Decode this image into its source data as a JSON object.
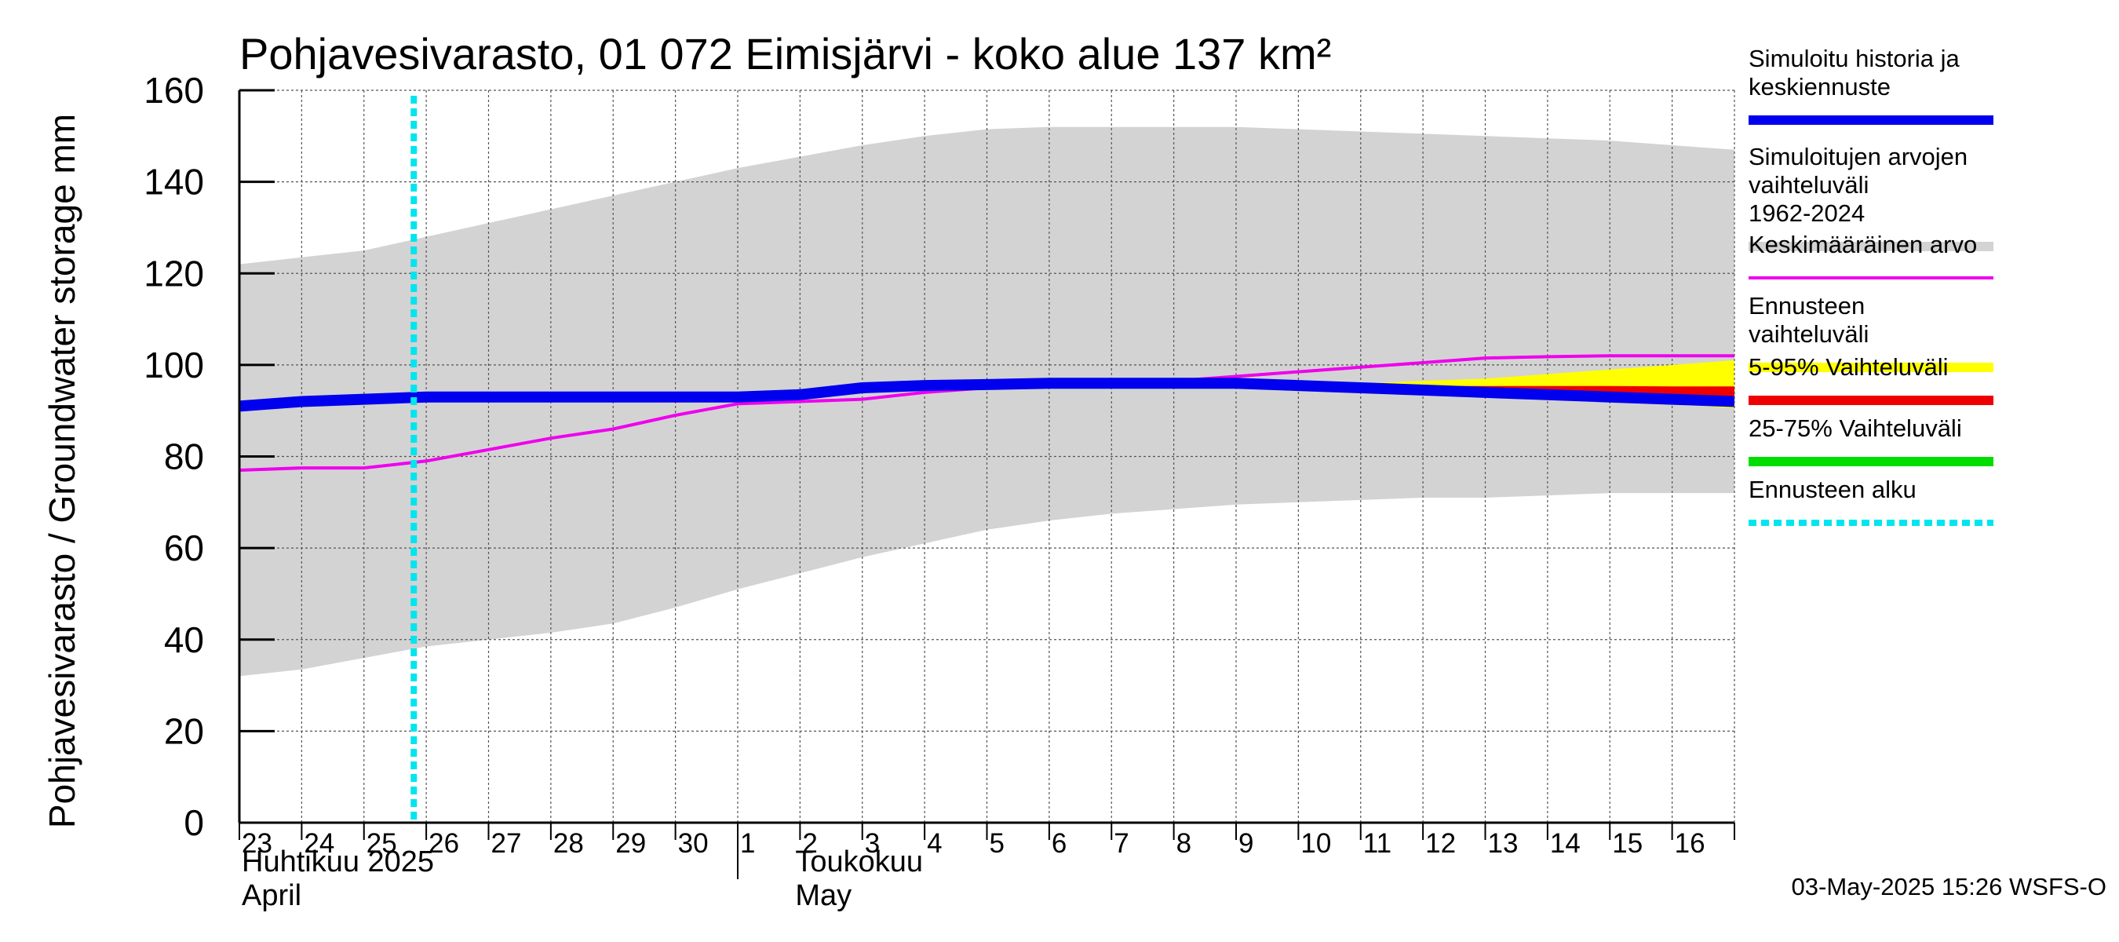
{
  "chart_data": {
    "type": "line",
    "title": "Pohjavesivarasto, 01 072 Eimisjärvi - koko alue 137 km²",
    "ylabel": "Pohjavesivarasto / Groundwater storage   mm",
    "ylim": [
      0,
      160
    ],
    "yticks": [
      "0",
      "20",
      "40",
      "60",
      "80",
      "100",
      "120",
      "140",
      "160"
    ],
    "grid": true,
    "legend_position": "right",
    "x_days": [
      "23",
      "24",
      "25",
      "26",
      "27",
      "28",
      "29",
      "30",
      "1",
      "2",
      "3",
      "4",
      "5",
      "6",
      "7",
      "8",
      "9",
      "10",
      "11",
      "12",
      "13",
      "14",
      "15",
      "16"
    ],
    "months": [
      {
        "fi": "Huhtikuu  2025",
        "en": "April"
      },
      {
        "fi": "Toukokuu",
        "en": "May"
      }
    ],
    "forecast_start_day": 2.8,
    "range_band": {
      "x": [
        0,
        1,
        2,
        3,
        4,
        5,
        6,
        7,
        8,
        9,
        10,
        11,
        12,
        13,
        14,
        15,
        16,
        17,
        18,
        19,
        20,
        21,
        22,
        23,
        24
      ],
      "upper": [
        122,
        123.5,
        125,
        128,
        131,
        134,
        137,
        140,
        143,
        145.5,
        148,
        150,
        151.5,
        152,
        152,
        152,
        152,
        151.5,
        151,
        150.5,
        150,
        149.5,
        149,
        148,
        147
      ],
      "lower": [
        32,
        33.5,
        36,
        38.5,
        40,
        41.5,
        43.5,
        47,
        51,
        54.5,
        58,
        61,
        64,
        66,
        67.5,
        68.5,
        69.5,
        70,
        70.5,
        71,
        71,
        71.5,
        72,
        72,
        72
      ]
    },
    "forecast_band": {
      "x": [
        16,
        17,
        18,
        19,
        20,
        21,
        22,
        23,
        24
      ],
      "upper": [
        95.5,
        95.7,
        96,
        96.5,
        97,
        98,
        99,
        100,
        101
      ],
      "lower": [
        95.5,
        95,
        94.5,
        94,
        93.5,
        93,
        92.5,
        91.5,
        90.5
      ]
    },
    "band_5_95": {
      "x": [
        16,
        17,
        18,
        19,
        20,
        21,
        22,
        23,
        24
      ],
      "upper": [
        95.5,
        95.5,
        95.5,
        95.4,
        95.4,
        95.4,
        95.4,
        95.3,
        95.3
      ],
      "lower": [
        95.5,
        94.8,
        94.0,
        93.6,
        93.3,
        93.0,
        92.7,
        92.5,
        92.3
      ]
    },
    "series": [
      {
        "name": "Simuloitu historia ja keskiennuste",
        "color": "#0000ee",
        "x": [
          0,
          1,
          2,
          3,
          4,
          5,
          6,
          7,
          8,
          9,
          10,
          11,
          12,
          13,
          14,
          15,
          16,
          17,
          18,
          19,
          20,
          21,
          22,
          23,
          24
        ],
        "values": [
          91,
          92,
          92.5,
          93,
          93,
          93,
          93,
          93,
          93,
          93.5,
          95,
          95.5,
          95.7,
          96,
          96,
          96,
          96,
          95.5,
          95,
          94.5,
          94,
          93.5,
          93,
          92.5,
          92
        ]
      },
      {
        "name": "Keskimääräinen arvo",
        "color": "#ee00ee",
        "x": [
          0,
          1,
          2,
          3,
          4,
          5,
          6,
          7,
          8,
          9,
          10,
          11,
          12,
          13,
          14,
          15,
          16,
          17,
          18,
          19,
          20,
          21,
          22,
          23,
          24
        ],
        "values": [
          77,
          77.5,
          77.5,
          79,
          81.5,
          84,
          86,
          89,
          91.5,
          92,
          92.5,
          94,
          95,
          95.5,
          96.5,
          96.5,
          97.5,
          98.5,
          99.5,
          100.5,
          101.5,
          101.8,
          102,
          102,
          102
        ]
      }
    ],
    "legend": [
      {
        "label": "Simuloitu historia ja keskiennuste",
        "color": "#0000ee",
        "style": "thick"
      },
      {
        "label": "Simuloitujen arvojen vaihteluväli 1962-2024",
        "color": "#d3d3d3",
        "style": "thick"
      },
      {
        "label": "Keskimääräinen arvo",
        "color": "#ee00ee",
        "style": "thin"
      },
      {
        "label": "Ennusteen vaihteluväli",
        "color": "#ffff00",
        "style": "thick"
      },
      {
        "label": "5-95% Vaihteluväli",
        "color": "#ee0000",
        "style": "thick"
      },
      {
        "label": "25-75% Vaihteluväli",
        "color": "#00dd00",
        "style": "thick"
      },
      {
        "label": "Ennusteen alku",
        "color": "#00e5ee",
        "style": "dotted"
      }
    ],
    "footer": "03-May-2025 15:26 WSFS-O"
  }
}
